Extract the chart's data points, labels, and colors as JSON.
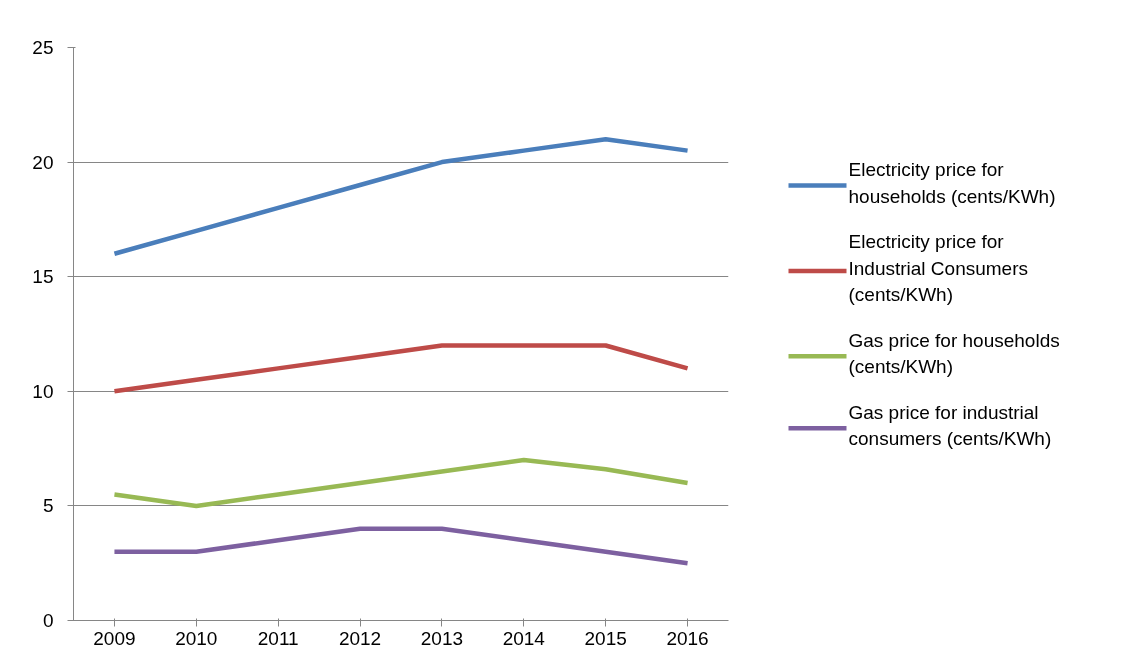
{
  "chart_data": {
    "type": "line",
    "categories": [
      "2009",
      "2010",
      "2011",
      "2012",
      "2013",
      "2014",
      "2015",
      "2016"
    ],
    "series": [
      {
        "name": "Electricity price for households (cents/KWh)",
        "color": "#4a7ebb",
        "values": [
          16,
          17,
          18,
          19,
          20,
          20.5,
          21,
          20.5
        ]
      },
      {
        "name": "Electricity price for Industrial Consumers (cents/KWh)",
        "color": "#be4b48",
        "values": [
          10,
          10.5,
          11,
          11.5,
          12,
          12,
          12,
          11
        ]
      },
      {
        "name": "Gas price for households (cents/KWh)",
        "color": "#98b954",
        "values": [
          5.5,
          5,
          5.5,
          6,
          6.5,
          7,
          6.6,
          6
        ]
      },
      {
        "name": "Gas price for industrial consumers (cents/KWh)",
        "color": "#7d60a0",
        "values": [
          3,
          3,
          3.5,
          4,
          4,
          3.5,
          3,
          2.5
        ]
      }
    ],
    "ylim": [
      0,
      25
    ],
    "yticks": [
      0,
      5,
      10,
      15,
      20,
      25
    ],
    "grid": "y",
    "legend": "right",
    "marker": "none",
    "line_style": "solid"
  }
}
